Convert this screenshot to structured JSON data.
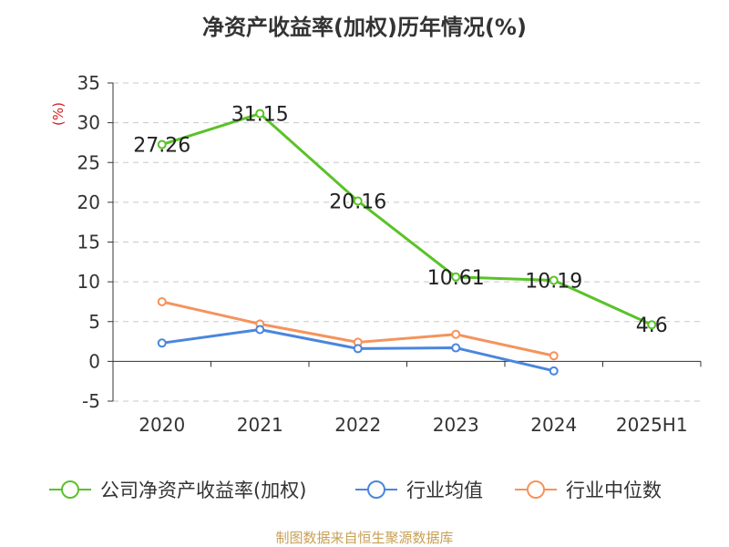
{
  "title": "净资产收益率(加权)历年情况(%)",
  "source": "制图数据来自恒生聚源数据库",
  "chart_data": {
    "type": "line",
    "title": "净资产收益率(加权)历年情况(%)",
    "ylabel": "(%)",
    "categories": [
      "2020",
      "2021",
      "2022",
      "2023",
      "2024",
      "2025H1"
    ],
    "ylim": [
      -5,
      35
    ],
    "yticks": [
      -5,
      0,
      5,
      10,
      15,
      20,
      25,
      30,
      35
    ],
    "grid": true,
    "legend_position": "bottom",
    "series": [
      {
        "name": "公司净资产收益率(加权)",
        "color": "#5ac229",
        "show_labels": true,
        "values": [
          27.26,
          31.15,
          20.16,
          10.61,
          10.19,
          4.6
        ]
      },
      {
        "name": "行业均值",
        "color": "#4a86dd",
        "show_labels": false,
        "values": [
          2.3,
          4.0,
          1.6,
          1.7,
          -1.2,
          null
        ]
      },
      {
        "name": "行业中位数",
        "color": "#f5935c",
        "show_labels": false,
        "values": [
          7.5,
          4.7,
          2.4,
          3.4,
          0.7,
          null
        ]
      }
    ]
  }
}
